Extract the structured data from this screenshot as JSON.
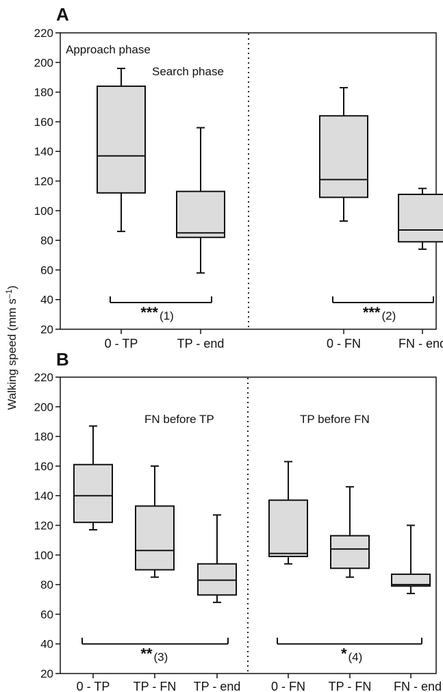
{
  "figure": {
    "ylabel": "Walking speed (mm s",
    "ylabel_sup": "–1",
    "ylabel_close": ")"
  },
  "chart_data": [
    {
      "type": "boxplot",
      "panel": "A",
      "ylim": [
        20,
        220
      ],
      "yticks": [
        20,
        40,
        60,
        80,
        100,
        120,
        140,
        160,
        180,
        200,
        220
      ],
      "categories": [
        "0 - TP",
        "TP - end",
        "0 - FN",
        "FN - end"
      ],
      "boxes": [
        {
          "min": 86,
          "q1": 112,
          "median": 137,
          "q3": 184,
          "max": 196
        },
        {
          "min": 58,
          "q1": 82,
          "median": 85,
          "q3": 113,
          "max": 156
        },
        {
          "min": 93,
          "q1": 109,
          "median": 121,
          "q3": 164,
          "max": 183
        },
        {
          "min": 74,
          "q1": 79,
          "median": 87,
          "q3": 111,
          "max": 115
        }
      ],
      "annotations": [
        {
          "text": "Approach phase"
        },
        {
          "text": "Search phase"
        }
      ],
      "brackets": [
        {
          "from": 0,
          "to": 1,
          "y": 38,
          "stars": "***",
          "note": "(1)"
        },
        {
          "from": 2,
          "to": 3,
          "y": 38,
          "stars": "***",
          "note": "(2)"
        }
      ],
      "divider_after": 1,
      "grid": false
    },
    {
      "type": "boxplot",
      "panel": "B",
      "ylim": [
        20,
        220
      ],
      "yticks": [
        20,
        40,
        60,
        80,
        100,
        120,
        140,
        160,
        180,
        200,
        220
      ],
      "categories": [
        "0 - TP",
        "TP - FN",
        "TP - end",
        "0 - FN",
        "TP - FN",
        "FN - end"
      ],
      "boxes": [
        {
          "min": 117,
          "q1": 122,
          "median": 140,
          "q3": 161,
          "max": 187
        },
        {
          "min": 85,
          "q1": 90,
          "median": 103,
          "q3": 133,
          "max": 160
        },
        {
          "min": 68,
          "q1": 73,
          "median": 83,
          "q3": 94,
          "max": 127
        },
        {
          "min": 94,
          "q1": 99,
          "median": 101,
          "q3": 137,
          "max": 163
        },
        {
          "min": 85,
          "q1": 91,
          "median": 104,
          "q3": 113,
          "max": 146
        },
        {
          "min": 74,
          "q1": 79,
          "median": 80,
          "q3": 87,
          "max": 120
        }
      ],
      "annotations": [
        {
          "text": "FN before TP"
        },
        {
          "text": "TP before FN"
        }
      ],
      "brackets": [
        {
          "from": 0,
          "to": 2,
          "y": 40,
          "stars": "**",
          "note": "(3)"
        },
        {
          "from": 3,
          "to": 5,
          "y": 40,
          "stars": "*",
          "note": "(4)"
        }
      ],
      "divider_after": 2,
      "grid": false
    }
  ]
}
